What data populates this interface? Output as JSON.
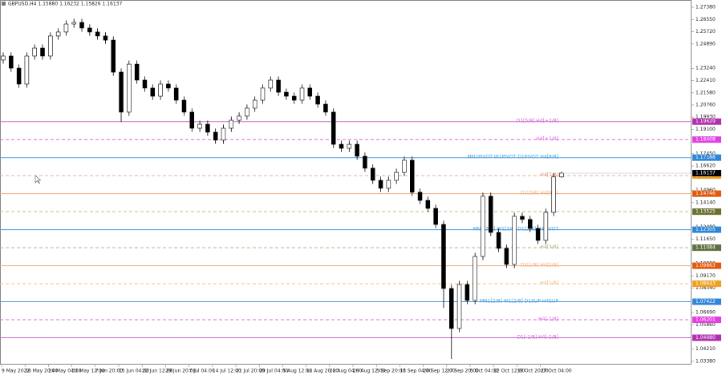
{
  "chart_data": {
    "type": "candlestick",
    "title": "GBPUSD,H4  1.15880 1.16232 1.15826 1.16137",
    "opens": [
      1.238,
      1.2407,
      1.2325,
      1.2217,
      1.2407,
      1.2461,
      1.2407,
      1.2543,
      1.257,
      1.2624,
      1.2635,
      1.2597,
      1.257,
      1.2543,
      1.2515,
      1.2298,
      1.2027,
      1.2352,
      1.2244,
      1.219,
      1.2135,
      1.2217,
      1.219,
      1.2108,
      1.2027,
      1.1918,
      1.1945,
      1.1891,
      1.1837,
      1.1918,
      1.1972,
      1.2,
      1.2054,
      1.2108,
      1.219,
      1.2244,
      1.2162,
      1.2135,
      1.2108,
      1.219,
      1.2135,
      1.2081,
      1.2027,
      1.1809,
      1.1782,
      1.1809,
      1.1728,
      1.1647,
      1.1565,
      1.1511,
      1.1565,
      1.1619,
      1.1701,
      1.1484,
      1.1429,
      1.1375,
      1.1266,
      1.0832,
      1.0561,
      1.0859,
      1.0751,
      1.1049,
      1.1457,
      1.1212,
      1.1104,
      1.0995,
      1.1321,
      1.13,
      1.1239,
      1.1158,
      1.1348,
      1.1588
    ],
    "highs": [
      1.2432,
      1.2432,
      1.235,
      1.2432,
      1.2486,
      1.2486,
      1.2568,
      1.2595,
      1.2649,
      1.266,
      1.266,
      1.2622,
      1.2595,
      1.2568,
      1.254,
      1.2323,
      1.2377,
      1.2377,
      1.2269,
      1.2215,
      1.2242,
      1.2242,
      1.2215,
      1.2133,
      1.2052,
      1.197,
      1.197,
      1.1916,
      1.1943,
      1.1997,
      1.2025,
      1.2079,
      1.2133,
      1.2215,
      1.2269,
      1.2269,
      1.2187,
      1.216,
      1.2215,
      1.2215,
      1.216,
      1.2106,
      1.2052,
      1.1834,
      1.1834,
      1.1834,
      1.1753,
      1.1672,
      1.159,
      1.159,
      1.1644,
      1.1726,
      1.1726,
      1.1509,
      1.1454,
      1.14,
      1.1291,
      1.0857,
      1.0884,
      1.0884,
      1.1074,
      1.1482,
      1.1482,
      1.1237,
      1.1129,
      1.1346,
      1.1346,
      1.1325,
      1.1264,
      1.1373,
      1.1613,
      1.16232
    ],
    "lows": [
      1.2355,
      1.23,
      1.2192,
      1.2192,
      1.2382,
      1.2382,
      1.2382,
      1.2518,
      1.2545,
      1.2599,
      1.2572,
      1.2545,
      1.2518,
      1.249,
      1.2273,
      1.196,
      1.2002,
      1.2219,
      1.2165,
      1.211,
      1.211,
      1.2165,
      1.2083,
      1.2002,
      1.1893,
      1.1893,
      1.1866,
      1.1812,
      1.1812,
      1.1893,
      1.1947,
      1.1975,
      1.2029,
      1.2083,
      1.2165,
      1.2137,
      1.211,
      1.2083,
      1.2083,
      1.211,
      1.2056,
      1.2002,
      1.1784,
      1.1757,
      1.1757,
      1.1703,
      1.1622,
      1.154,
      1.1486,
      1.1486,
      1.154,
      1.1594,
      1.1459,
      1.1404,
      1.135,
      1.1241,
      1.07,
      1.0354,
      1.0536,
      1.0726,
      1.0726,
      1.1024,
      1.1187,
      1.1079,
      1.097,
      1.097,
      1.1275,
      1.1214,
      1.1133,
      1.1133,
      1.1323,
      1.15826
    ],
    "closes": [
      1.2407,
      1.2325,
      1.2217,
      1.2407,
      1.2461,
      1.2407,
      1.2543,
      1.257,
      1.2624,
      1.2635,
      1.2597,
      1.257,
      1.2543,
      1.2515,
      1.2298,
      1.2027,
      1.2352,
      1.2244,
      1.219,
      1.2135,
      1.2217,
      1.219,
      1.2108,
      1.2027,
      1.1918,
      1.1945,
      1.1891,
      1.1837,
      1.1918,
      1.1972,
      1.2,
      1.2054,
      1.2108,
      1.219,
      1.2244,
      1.2162,
      1.2135,
      1.2108,
      1.219,
      1.2135,
      1.2081,
      1.2027,
      1.1809,
      1.1782,
      1.1809,
      1.1728,
      1.1647,
      1.1565,
      1.1511,
      1.1565,
      1.1619,
      1.1701,
      1.1484,
      1.1429,
      1.1375,
      1.1266,
      1.0832,
      1.0561,
      1.0859,
      1.0751,
      1.1049,
      1.1457,
      1.1212,
      1.1104,
      1.0995,
      1.1321,
      1.13,
      1.1239,
      1.1158,
      1.1348,
      1.1588,
      1.16137
    ],
    "x_labels": [
      "9 May 2022",
      "16 May 20:00",
      "24 May 04:00",
      "31 May 12:00",
      "7 Jun 20:00",
      "15 Jun 04:00",
      "22 Jun 12:00",
      "29 Jun 20:00",
      "7 Jul 04:00",
      "14 Jul 12:00",
      "21 Jul 20:00",
      "29 Jul 04:00",
      "5 Aug 12:00",
      "12 Aug 20:00",
      "22 Aug 04:00",
      "29 Aug 12:00",
      "5 Sep 20:00",
      "13 Sep 04:00",
      "20 Sep 12:00",
      "27 Sep 20:00",
      "5 Oct 04:00",
      "12 Oct 12:00",
      "19 Oct 20:00",
      "27 Oct 04:00"
    ],
    "ylim": [
      1.0338,
      1.2738
    ],
    "yticks": [
      {
        "value": 1.2738,
        "label": "1.27380"
      },
      {
        "value": 1.2655,
        "label": "1.26550"
      },
      {
        "value": 1.2572,
        "label": "1.25720"
      },
      {
        "value": 1.2489,
        "label": "1.24890"
      },
      {
        "value": 1.2324,
        "label": "1.23240"
      },
      {
        "value": 1.2241,
        "label": "1.22410"
      },
      {
        "value": 1.2158,
        "label": "1.21580"
      },
      {
        "value": 1.2076,
        "label": "1.20760"
      },
      {
        "value": 1.1993,
        "label": "1.19930"
      },
      {
        "value": 1.191,
        "label": "1.19100"
      },
      {
        "value": 1.1745,
        "label": "1.17450"
      },
      {
        "value": 1.1662,
        "label": "1.16620"
      },
      {
        "value": 1.1496,
        "label": "1.14960"
      },
      {
        "value": 1.1414,
        "label": "1.14140"
      },
      {
        "value": 1.1248,
        "label": "1.12480"
      },
      {
        "value": 1.1165,
        "label": "1.11650"
      },
      {
        "value": 1.1,
        "label": "1.10000"
      },
      {
        "value": 1.0917,
        "label": "1.09170"
      },
      {
        "value": 1.0834,
        "label": "1.08340"
      },
      {
        "value": 1.0669,
        "label": "1.06690"
      },
      {
        "value": 1.0586,
        "label": "1.05860"
      },
      {
        "value": 1.0421,
        "label": "1.04210"
      },
      {
        "value": 1.0338,
        "label": "1.03380"
      }
    ],
    "current_price": {
      "value": 1.16137,
      "label": "1.16137"
    },
    "levels": [
      {
        "label": "D1[5/8] H4[+2/8]",
        "price": 1.19629,
        "price_label": "1.19629",
        "color": "#cc66cc",
        "tag_color": "#b030b0",
        "dashed": false
      },
      {
        "label": "H4[+1/8]",
        "price": 1.18408,
        "price_label": "1.18408",
        "color": "#e066e0",
        "tag_color": "#e040e0",
        "dashed": true
      },
      {
        "label": "MN1PIVOT W1PIVOT D1PIVOT H4[8/8]",
        "price": 1.17188,
        "price_label": "1.17188",
        "color": "#4a9fe0",
        "tag_color": "#2f86d6",
        "dashed": false
      },
      {
        "label": "H4[7/8]",
        "price": 1.15967,
        "price_label": "1.15967",
        "color": "#e0b0a0",
        "tag_color": "#f0a020",
        "dashed": true
      },
      {
        "label": "D1[3/8] H4[6/8]",
        "price": 1.14746,
        "price_label": "1.14746",
        "color": "#f0b080",
        "tag_color": "#e05a10",
        "dashed": false
      },
      {
        "price": 1.13525,
        "price_label": "1.13525",
        "color": "#c8b888",
        "tag_color": "#6a7030",
        "dashed": true
      },
      {
        "label": "MN1[3/8] W1[3/8] D1[2/8] H4PIVOT",
        "price": 1.12305,
        "price_label": "1.12305",
        "color": "#4a9fe0",
        "tag_color": "#2f86d6",
        "dashed": false
      },
      {
        "label": "H4[3/8]",
        "price": 1.11084,
        "price_label": "1.11084",
        "color": "#b8b088",
        "tag_color": "#607040",
        "dashed": true
      },
      {
        "label": "D1[1/8] H4[2/8]",
        "price": 1.09863,
        "price_label": "1.09863",
        "color": "#f0b080",
        "tag_color": "#e05a10",
        "dashed": false
      },
      {
        "label": "H4[1/8]",
        "price": 1.08643,
        "price_label": "1.08643",
        "color": "#f0c080",
        "tag_color": "#f0a020",
        "dashed": true
      },
      {
        "label": "MN1[2/8] W1[2/8] D1SUP H4SUP",
        "price": 1.07422,
        "price_label": "1.07422",
        "color": "#4a9fe0",
        "tag_color": "#2f86d6",
        "dashed": false
      },
      {
        "label": "H4[-1/8]",
        "price": 1.06201,
        "price_label": "1.06201",
        "color": "#e066e0",
        "tag_color": "#e040e0",
        "dashed": true
      },
      {
        "label": "D1[-1/8] H4[-2/8]",
        "price": 1.0498,
        "price_label": "1.04980",
        "color": "#cc66cc",
        "tag_color": "#b030b0",
        "dashed": false
      }
    ]
  }
}
